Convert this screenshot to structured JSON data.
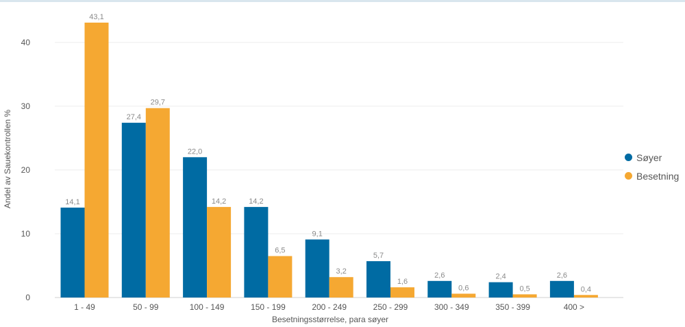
{
  "chart_data": {
    "type": "bar",
    "categories": [
      "1 - 49",
      "50 - 99",
      "100 - 149",
      "150 - 199",
      "200 - 249",
      "250 - 299",
      "300 - 349",
      "350 - 399",
      "400 >"
    ],
    "series": [
      {
        "name": "Søyer",
        "color": "#006ba3",
        "values": [
          14.1,
          27.4,
          22.0,
          14.2,
          9.1,
          5.7,
          2.6,
          2.4,
          2.6
        ],
        "labels": [
          "14,1",
          "27,4",
          "22,0",
          "14,2",
          "9,1",
          "5,7",
          "2,6",
          "2,4",
          "2,6"
        ]
      },
      {
        "name": "Besetning",
        "color": "#f5a832",
        "values": [
          43.1,
          29.7,
          14.2,
          6.5,
          3.2,
          1.6,
          0.6,
          0.5,
          0.4
        ],
        "labels": [
          "43,1",
          "29,7",
          "14,2",
          "6,5",
          "3,2",
          "1,6",
          "0,6",
          "0,5",
          "0,4"
        ]
      }
    ],
    "xlabel": "Besetningsstørrelse, para søyer",
    "ylabel": "Andel av Sauekontrollen %",
    "ylim": [
      0,
      43.1
    ],
    "yticks": [
      0,
      10,
      20,
      30,
      40
    ],
    "grid": true,
    "legend_position": "right"
  }
}
